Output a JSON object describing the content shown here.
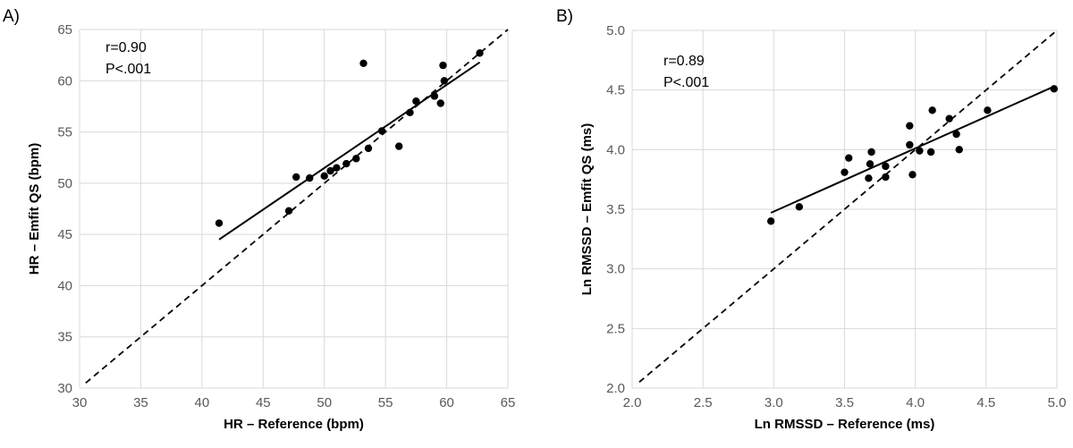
{
  "chart_data": [
    {
      "type": "scatter",
      "panel_label": "A)",
      "xlabel": "HR – Reference (bpm)",
      "ylabel": "HR – Emfit QS (bpm)",
      "xlim": [
        30,
        65
      ],
      "ylim": [
        30,
        65
      ],
      "xticks": [
        "30",
        "35",
        "40",
        "45",
        "50",
        "55",
        "60",
        "65"
      ],
      "yticks": [
        "30",
        "35",
        "40",
        "45",
        "50",
        "55",
        "60",
        "65"
      ],
      "annotation": [
        "r=0.90",
        "P<.001"
      ],
      "grid": true,
      "points": [
        {
          "x": 41.4,
          "y": 46.1
        },
        {
          "x": 47.1,
          "y": 47.3
        },
        {
          "x": 47.7,
          "y": 50.6
        },
        {
          "x": 48.8,
          "y": 50.5
        },
        {
          "x": 50.0,
          "y": 50.7
        },
        {
          "x": 50.5,
          "y": 51.2
        },
        {
          "x": 51.0,
          "y": 51.5
        },
        {
          "x": 51.8,
          "y": 51.9
        },
        {
          "x": 52.6,
          "y": 52.4
        },
        {
          "x": 53.2,
          "y": 61.7
        },
        {
          "x": 53.6,
          "y": 53.4
        },
        {
          "x": 54.7,
          "y": 55.1
        },
        {
          "x": 56.1,
          "y": 53.6
        },
        {
          "x": 57.0,
          "y": 56.9
        },
        {
          "x": 57.5,
          "y": 58.0
        },
        {
          "x": 59.0,
          "y": 58.5
        },
        {
          "x": 59.5,
          "y": 57.8
        },
        {
          "x": 59.7,
          "y": 61.5
        },
        {
          "x": 59.8,
          "y": 60.0
        },
        {
          "x": 62.7,
          "y": 62.7
        }
      ],
      "regression_line": {
        "x1": 41.4,
        "y1": 44.5,
        "x2": 62.7,
        "y2": 61.8
      },
      "identity_line": {
        "x1": 30.5,
        "y1": 30.5,
        "x2": 65,
        "y2": 65
      }
    },
    {
      "type": "scatter",
      "panel_label": "B)",
      "xlabel": "Ln RMSSD – Reference (ms)",
      "ylabel": "Ln RMSSD – Emfit QS (ms)",
      "xlim": [
        2.0,
        5.0
      ],
      "ylim": [
        2.0,
        5.0
      ],
      "xticks": [
        "2.0",
        "2.5",
        "3.0",
        "3.5",
        "4.0",
        "4.5",
        "5.0"
      ],
      "yticks": [
        "2.0",
        "2.5",
        "3.0",
        "3.5",
        "4.0",
        "4.5",
        "5.0"
      ],
      "annotation": [
        "r=0.89",
        "P<.001"
      ],
      "grid": true,
      "points": [
        {
          "x": 2.98,
          "y": 3.4
        },
        {
          "x": 3.18,
          "y": 3.52
        },
        {
          "x": 3.5,
          "y": 3.81
        },
        {
          "x": 3.53,
          "y": 3.93
        },
        {
          "x": 3.67,
          "y": 3.76
        },
        {
          "x": 3.68,
          "y": 3.88
        },
        {
          "x": 3.69,
          "y": 3.98
        },
        {
          "x": 3.79,
          "y": 3.77
        },
        {
          "x": 3.79,
          "y": 3.86
        },
        {
          "x": 3.96,
          "y": 4.2
        },
        {
          "x": 3.96,
          "y": 4.04
        },
        {
          "x": 3.98,
          "y": 3.79
        },
        {
          "x": 4.03,
          "y": 3.99
        },
        {
          "x": 4.11,
          "y": 3.98
        },
        {
          "x": 4.12,
          "y": 4.33
        },
        {
          "x": 4.24,
          "y": 4.26
        },
        {
          "x": 4.29,
          "y": 4.13
        },
        {
          "x": 4.31,
          "y": 4.0
        },
        {
          "x": 4.51,
          "y": 4.33
        },
        {
          "x": 4.98,
          "y": 4.51
        }
      ],
      "regression_line": {
        "x1": 2.98,
        "y1": 3.47,
        "x2": 4.98,
        "y2": 4.53
      },
      "identity_line": {
        "x1": 2.05,
        "y1": 2.05,
        "x2": 5.0,
        "y2": 5.0
      }
    }
  ]
}
